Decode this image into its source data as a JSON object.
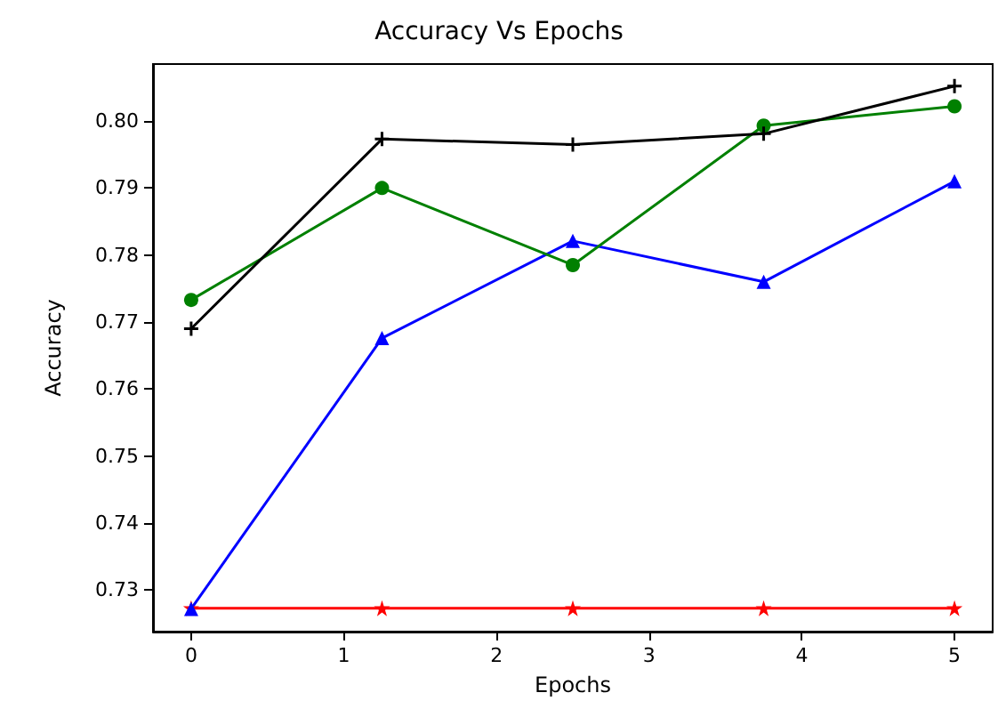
{
  "chart_data": {
    "type": "line",
    "title": "Accuracy Vs Epochs",
    "xlabel": "Epochs",
    "ylabel": "Accuracy",
    "x": [
      0,
      1.25,
      2.5,
      3.75,
      5
    ],
    "series": [
      {
        "color": "#ff0000",
        "marker": "star",
        "values": [
          0.7273,
          0.7273,
          0.7273,
          0.7273,
          0.7273
        ]
      },
      {
        "color": "#0000ff",
        "marker": "triangle",
        "values": [
          0.7272,
          0.7676,
          0.7821,
          0.776,
          0.791
        ]
      },
      {
        "color": "#008000",
        "marker": "circle",
        "values": [
          0.7733,
          0.79,
          0.7785,
          0.7993,
          0.8022
        ]
      },
      {
        "color": "#000000",
        "marker": "cross",
        "values": [
          0.769,
          0.7973,
          0.7965,
          0.7981,
          0.8052
        ]
      }
    ],
    "xlim": [
      -0.25,
      5.25
    ],
    "xticks": [
      0,
      1,
      2,
      3,
      4,
      5
    ],
    "ylim": [
      0.7238,
      0.8085
    ],
    "yticks": [
      0.73,
      0.74,
      0.75,
      0.76,
      0.77,
      0.78,
      0.79,
      {
        "value": 0.8,
        "label": "0.80"
      }
    ],
    "grid": false
  }
}
